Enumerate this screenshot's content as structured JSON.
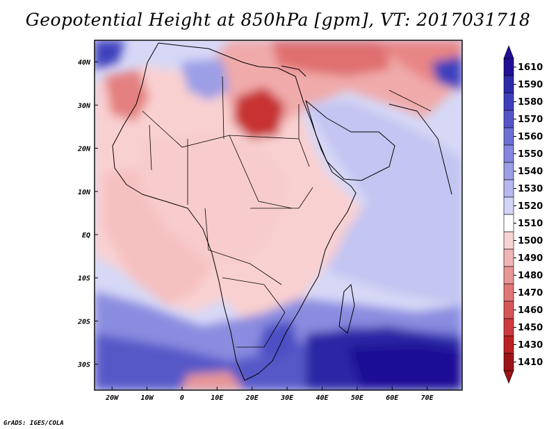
{
  "title": "Geopotential Height at 850hPa [gpm], VT: 2017031718",
  "credit": "GrADS: IGES/COLA",
  "map": {
    "lon_labels": [
      "20W",
      "10W",
      "0",
      "10E",
      "20E",
      "30E",
      "40E",
      "50E",
      "60E",
      "70E"
    ],
    "lat_labels": [
      "40N",
      "30N",
      "20N",
      "10N",
      "EQ",
      "10S",
      "20S",
      "30S"
    ]
  },
  "colorbar": {
    "levels": [
      "1610",
      "1590",
      "1580",
      "1570",
      "1560",
      "1550",
      "1540",
      "1530",
      "1520",
      "1510",
      "1500",
      "1490",
      "1480",
      "1470",
      "1460",
      "1450",
      "1430",
      "1410"
    ],
    "colors": [
      "#1e0f96",
      "#2d2aa9",
      "#3e3fbc",
      "#5656c9",
      "#6d6fd4",
      "#8586de",
      "#9c9ee6",
      "#b6b8ef",
      "#d3d5f6",
      "#ffffff",
      "#f7d3d3",
      "#f0b4b4",
      "#e89696",
      "#e07777",
      "#d75757",
      "#cc3c3c",
      "#bb2323",
      "#9e1313"
    ]
  }
}
